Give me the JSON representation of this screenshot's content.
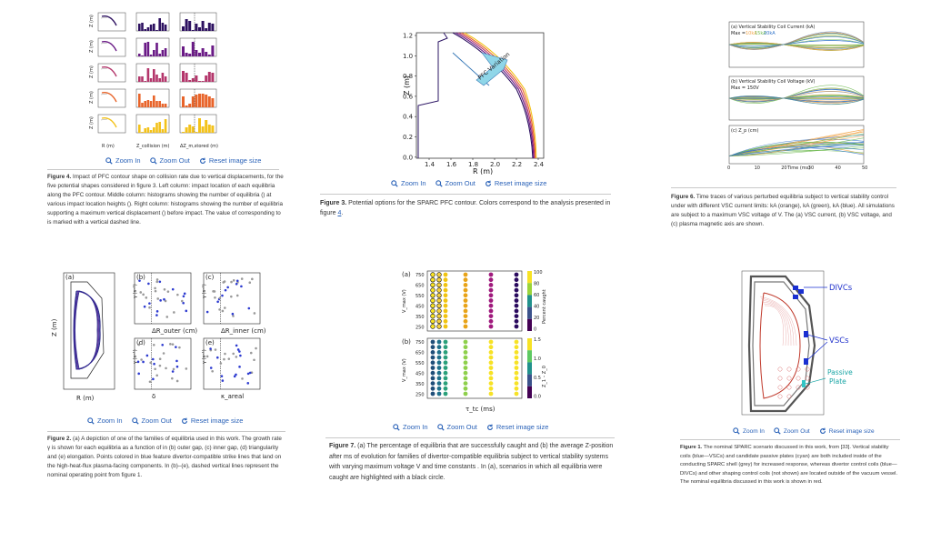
{
  "tools": {
    "zoom_in": "Zoom In",
    "zoom_out": "Zoom Out",
    "reset": "Reset image size"
  },
  "fig4": {
    "title": "Figure 4.",
    "caption": " Impact of PFC contour shape on collision rate due to vertical displacements, for the five potential shapes considered in figure 3. Left column: impact location of each equilibria along the PFC contour. Middle column: histograms showing the number of equilibria () at various impact location heights (). Right column: histograms showing the number of equilibria supporting a maximum vertical displacement () before impact. The value of corresponding to is marked with a vertical dashed line.",
    "xlabels": [
      "R (m)",
      "Z_collision (m)",
      "ΔZ_m,stored (m)"
    ]
  },
  "fig3": {
    "title": "Figure 3.",
    "caption_pre": " Potential options for the SPARC PFC contour. Colors correspond to the analysis presented in figure ",
    "caption_link": "4",
    "caption_post": ".",
    "arrow_label": "PFC Variation",
    "xlabel": "R (m)",
    "ylabel": "Z (m)",
    "xticks": [
      "1.4",
      "1.6",
      "1.8",
      "2.0",
      "2.2",
      "2.4"
    ],
    "yticks": [
      "1.2",
      "1.0",
      "0.8",
      "0.6",
      "0.4",
      "0.2",
      "0.0"
    ]
  },
  "fig6": {
    "title": "Figure 6.",
    "caption": " Time traces of various perturbed equilibria subject to vertical stability control under with different VSC current limits: kA (orange), kA (green), kA (blue). All simulations are subject to a maximum VSC voltage of V. The (a) VSC current, (b) VSC voltage, and (c) plasma magnetic axis are shown.",
    "panel_a": "(a) Vertical Stability Coil Current (kA)",
    "panel_a_max": "Max =",
    "panel_a_vals": [
      "10kA",
      "15kA",
      "20kA"
    ],
    "panel_b": "(b) Vertical Stability Coil Voltage (kV)",
    "panel_b_max": "Max = 150V",
    "panel_c": "(c) Z_p (cm)",
    "xlabel": "Time (ms)",
    "xticks": [
      "0",
      "10",
      "20",
      "30",
      "40",
      "50"
    ]
  },
  "fig2": {
    "title": "Figure 2.",
    "caption": " (a) A depiction of one of the families of equilibria used in this work. The growth rate γ is shown for each equilibria as a function of in (b) outer gap, (c) inner gap, (d) triangularity and (e) elongation. Points colored in blue feature divertor-compatible strike lines that land on the high-heat-flux plasma-facing components. In (b)–(e), dashed vertical lines represent the nominal operating point from figure 1.",
    "panels": [
      "(a)",
      "(b)",
      "(c)",
      "(d)",
      "(e)"
    ],
    "xlabels": [
      "R (m)",
      "ΔR_outer (cm)",
      "ΔR_inner (cm)",
      "δ",
      "κ_areal"
    ],
    "ylabel_a": "Z (m)",
    "ylabel_g": "γ (s⁻¹)"
  },
  "fig7": {
    "title": "Figure 7.",
    "caption": " (a) The percentage of equilibria that are successfully caught and (b) the average Z-position after ms of evolution for families of divertor-compatible equilibria subject to vertical stability systems with varying maximum voltage V and time constants . In (a), scenarios in which all equilibria were caught are highlighted with a black circle.",
    "panels": [
      "(a)",
      "(b)"
    ],
    "ylabel": "V_max (V)",
    "xlabel": "τ_tc (ms)",
    "cbar_a": "Percent caught",
    "cbar_b": "Z_1 – Z_0",
    "yticks": [
      "750",
      "650",
      "550",
      "450",
      "350",
      "250"
    ],
    "cbar_a_ticks": [
      "100",
      "80",
      "60",
      "40",
      "20",
      "0"
    ],
    "cbar_b_ticks": [
      "1.5",
      "1.0",
      "0.5",
      "0.0"
    ]
  },
  "fig1": {
    "title": "Figure 1.",
    "caption": " The nominal SPARC scenario discussed in this work, from [33]. Vertical stability coils (blue—VSCs) and candidate passive plates (cyan) are both included inside of the conducting SPARC shell (grey) for increased response, whereas divertor control coils (blue—DIVCs) and other shaping control coils (not shown) are located outside of the vacuum vessel. The nominal equilibria discussed in this work is shown in red.",
    "labels": [
      "DIVCs",
      "VSCs",
      "Passive\nPlate"
    ],
    "label_divcs": "DIVCs",
    "label_vscs": "VSCs",
    "label_passive_1": "Passive",
    "label_passive_2": "Plate"
  },
  "colors": {
    "link": "#2a62b8",
    "text": "#333333",
    "purple": "#3b0f70",
    "orange": "#f28e2b",
    "yellow": "#f5c400"
  }
}
